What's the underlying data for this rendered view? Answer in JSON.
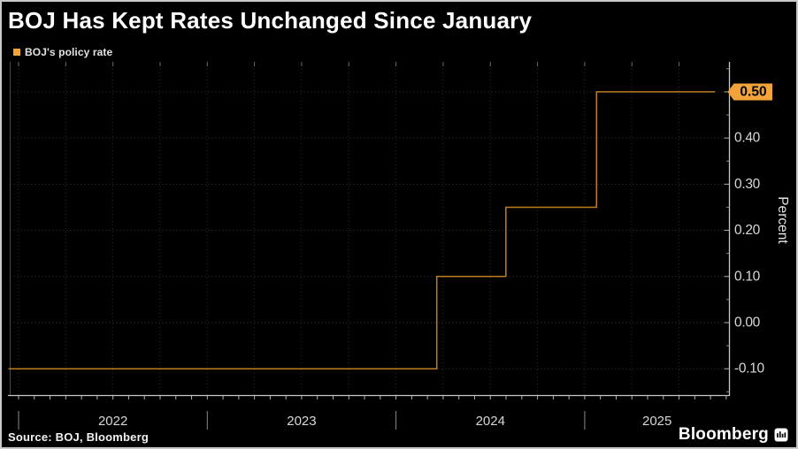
{
  "frame": {
    "title": "BOJ Has Kept Rates Unchanged Since January",
    "legend": {
      "label": "BOJ's policy rate",
      "swatch_color": "#F2A43B"
    },
    "source": "Source: BOJ, Bloomberg",
    "brand": "Bloomberg",
    "brand_logo": "bloomberg-mark-icon"
  },
  "colors": {
    "background": "#000000",
    "line": "#BD7E22",
    "badge_bg": "#F2A43B",
    "badge_text": "#000000",
    "axis": "#c8c8c8",
    "tick": "#b0b0b0",
    "minor_tick": "#8a8a8a",
    "tick_label": "#d8d8d8",
    "axis_title": "#e5e5e5",
    "grid_h": "#3c3c3c",
    "grid_v": "#2e2e2e",
    "top_tick": "#6a6a6a",
    "left_axis": "#4a4a4a"
  },
  "chart_data": {
    "type": "line",
    "style": "step-after",
    "title": "BOJ Has Kept Rates Unchanged Since January",
    "legend_position": "top-left",
    "grid": true,
    "ylabel": "Percent",
    "ylim": [
      -0.158,
      0.565
    ],
    "xlim": [
      "2021-12-12",
      "2025-10-01"
    ],
    "y_ticks": [
      0.5,
      0.4,
      0.3,
      0.2,
      0.1,
      0.0,
      -0.1
    ],
    "y_tick_labels": [
      "0.50",
      "0.40",
      "0.30",
      "0.20",
      "0.10",
      "0.00",
      "-0.10"
    ],
    "x_tick_labels": [
      "2022",
      "2023",
      "2024",
      "2025"
    ],
    "x_year_starts": [
      "2022-01-01",
      "2023-01-01",
      "2024-01-01",
      "2025-01-01"
    ],
    "last_value_label": "0.50",
    "series": [
      {
        "name": "BOJ's policy rate",
        "color": "#BD7E22",
        "points": [
          {
            "date": "2021-12-12",
            "value": -0.1
          },
          {
            "date": "2024-03-19",
            "value": 0.1
          },
          {
            "date": "2024-07-31",
            "value": 0.25
          },
          {
            "date": "2025-01-24",
            "value": 0.5
          },
          {
            "date": "2025-09-10",
            "value": 0.5
          }
        ]
      }
    ]
  }
}
